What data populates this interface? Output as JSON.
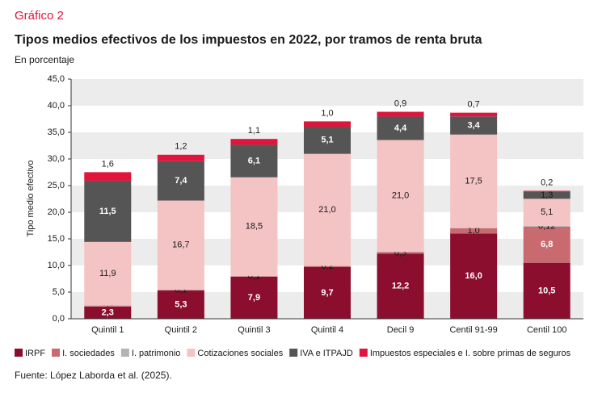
{
  "chart_data": {
    "type": "stacked-bar",
    "label": "Gráfico 2",
    "title": "Tipos medios efectivos de los impuestos en 2022, por tramos de renta bruta",
    "subtitle": "En porcentaje",
    "y_label": "Tipo medio efectivo",
    "source": "Fuente: López Laborda et al. (2025).",
    "categories": [
      "Quintil 1",
      "Quintil 2",
      "Quintil 3",
      "Quintil 4",
      "Decil 9",
      "Centil 91-99",
      "Centil 100"
    ],
    "ylim": [
      0,
      45
    ],
    "yticks": [
      {
        "value": 0,
        "label": "0,0"
      },
      {
        "value": 5,
        "label": "5,0"
      },
      {
        "value": 10,
        "label": "10,0"
      },
      {
        "value": 15,
        "label": "15,0"
      },
      {
        "value": 20,
        "label": "20,0"
      },
      {
        "value": 25,
        "label": "25,0"
      },
      {
        "value": 30,
        "label": "30,0"
      },
      {
        "value": 35,
        "label": "35,0"
      },
      {
        "value": 40,
        "label": "40,0"
      },
      {
        "value": 45,
        "label": "45,0"
      }
    ],
    "series": [
      {
        "name": "IRPF",
        "color": "#8b0e2e",
        "values": [
          2.3,
          5.3,
          7.9,
          9.7,
          12.2,
          16.0,
          10.5
        ],
        "value_labels": [
          "2,3",
          "5,3",
          "7,9",
          "9,7",
          "12,2",
          "16,0",
          "10,5"
        ]
      },
      {
        "name": "I. sociedades",
        "color": "#c86a70",
        "values": [
          0.1,
          0.1,
          0.1,
          0.2,
          0.3,
          1.0,
          6.8
        ],
        "value_labels": [
          "0,1",
          "0,1",
          "0,1",
          "0,2",
          "0,3",
          "1,0",
          "6,8"
        ]
      },
      {
        "name": "I. patrimonio",
        "color": "#b3b3b3",
        "values": [
          0.12,
          0.09,
          0.06,
          0.06,
          0.06,
          0.09,
          0.12
        ],
        "value_labels": [
          "0,12",
          "0,09",
          "0,06",
          "0,06",
          "0,06",
          "0,09",
          "0,12"
        ]
      },
      {
        "name": "Cotizaciones sociales",
        "color": "#f4c3c3",
        "values": [
          11.9,
          16.7,
          18.5,
          21.0,
          21.0,
          17.5,
          5.1
        ],
        "value_labels": [
          "11,9",
          "16,7",
          "18,5",
          "21,0",
          "21,0",
          "17,5",
          "5,1"
        ]
      },
      {
        "name": "IVA e ITPAJD",
        "color": "#555555",
        "values": [
          11.5,
          7.4,
          6.1,
          5.1,
          4.4,
          3.4,
          1.3
        ],
        "value_labels": [
          "11,5",
          "7,4",
          "6,1",
          "5,1",
          "4,4",
          "3,4",
          "1,3"
        ]
      },
      {
        "name": "Impuestos especiales e I. sobre primas de seguros",
        "color": "#e0143c",
        "values": [
          1.6,
          1.2,
          1.1,
          1.0,
          0.9,
          0.7,
          0.2
        ],
        "value_labels": [
          "1,6",
          "1,2",
          "1,1",
          "1,0",
          "0,9",
          "0,7",
          "0,2"
        ]
      }
    ]
  }
}
